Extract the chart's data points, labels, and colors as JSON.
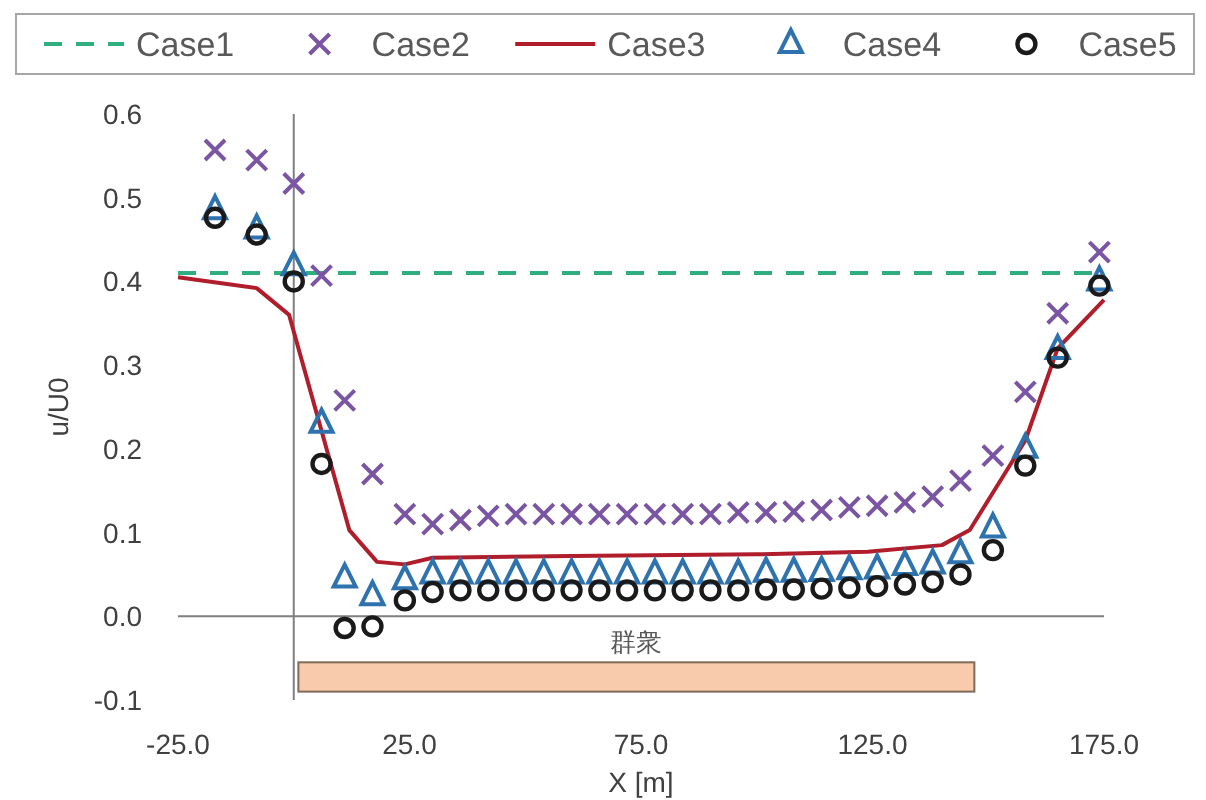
{
  "chart_data": {
    "type": "scatter",
    "xlabel": "X [m]",
    "ylabel": "u/U0",
    "xlim": [
      -25,
      175
    ],
    "ylim": [
      -0.1,
      0.6
    ],
    "xticks": [
      {
        "value": -25,
        "label": "-25.0"
      },
      {
        "value": 25,
        "label": "25.0"
      },
      {
        "value": 75,
        "label": "75.0"
      },
      {
        "value": 125,
        "label": "125.0"
      },
      {
        "value": 175,
        "label": "175.0"
      }
    ],
    "yticks": [
      {
        "value": -0.1,
        "label": "-0.1"
      },
      {
        "value": 0,
        "label": "0.0"
      },
      {
        "value": 0.1,
        "label": "0.1"
      },
      {
        "value": 0.2,
        "label": "0.2"
      },
      {
        "value": 0.3,
        "label": "0.3"
      },
      {
        "value": 0.4,
        "label": "0.4"
      },
      {
        "value": 0.5,
        "label": "0.5"
      },
      {
        "value": 0.6,
        "label": "0.6"
      }
    ],
    "legend": "top",
    "bands": [
      {
        "axis": "x",
        "from": 1,
        "to": 147,
        "label": "群衆",
        "color": "#f8cbad"
      }
    ],
    "series": [
      {
        "name": "Case1",
        "type": "line",
        "line_style": "dashed",
        "marker": "none",
        "color": "#2eaf7d",
        "x": [
          -25,
          175
        ],
        "values": [
          0.41,
          0.41
        ]
      },
      {
        "name": "Case2",
        "marker": "cross",
        "color": "#7a55a3",
        "x": [
          -17,
          -8,
          0,
          6,
          11,
          17,
          24,
          30,
          36,
          42,
          48,
          54,
          60,
          66,
          72,
          78,
          84,
          90,
          96,
          102,
          108,
          114,
          120,
          126,
          132,
          138,
          144,
          151,
          158,
          165,
          174
        ],
        "values": [
          0.557,
          0.545,
          0.517,
          0.407,
          0.258,
          0.17,
          0.122,
          0.11,
          0.115,
          0.12,
          0.122,
          0.122,
          0.122,
          0.122,
          0.122,
          0.122,
          0.122,
          0.122,
          0.124,
          0.124,
          0.125,
          0.127,
          0.13,
          0.132,
          0.136,
          0.143,
          0.162,
          0.192,
          0.268,
          0.362,
          0.435
        ]
      },
      {
        "name": "Case3",
        "type": "line",
        "line_style": "solid",
        "marker": "none",
        "color": "#b01e2b",
        "x": [
          -25,
          -8,
          -1,
          12,
          18,
          24,
          30,
          60,
          100,
          124,
          140,
          146,
          158,
          165,
          175
        ],
        "values": [
          0.405,
          0.392,
          0.36,
          0.103,
          0.065,
          0.062,
          0.07,
          0.072,
          0.074,
          0.077,
          0.085,
          0.103,
          0.21,
          0.32,
          0.378
        ]
      },
      {
        "name": "Case4",
        "marker": "triangle",
        "color": "#2f73ae",
        "x": [
          -17,
          -8,
          0,
          6,
          11,
          17,
          24,
          30,
          36,
          42,
          48,
          54,
          60,
          66,
          72,
          78,
          84,
          90,
          96,
          102,
          108,
          114,
          120,
          126,
          132,
          138,
          144,
          151,
          158,
          165,
          174
        ],
        "values": [
          0.485,
          0.462,
          0.418,
          0.23,
          0.045,
          0.024,
          0.043,
          0.05,
          0.05,
          0.05,
          0.05,
          0.05,
          0.05,
          0.05,
          0.05,
          0.05,
          0.05,
          0.05,
          0.05,
          0.052,
          0.052,
          0.053,
          0.055,
          0.056,
          0.06,
          0.062,
          0.074,
          0.105,
          0.2,
          0.318,
          0.4
        ]
      },
      {
        "name": "Case5",
        "marker": "circle",
        "color": "#1a1a1a",
        "x": [
          -17,
          -8,
          0,
          6,
          11,
          17,
          24,
          30,
          36,
          42,
          48,
          54,
          60,
          66,
          72,
          78,
          84,
          90,
          96,
          102,
          108,
          114,
          120,
          126,
          132,
          138,
          144,
          151,
          158,
          165,
          174
        ],
        "values": [
          0.476,
          0.456,
          0.4,
          0.182,
          -0.014,
          -0.012,
          0.019,
          0.029,
          0.031,
          0.031,
          0.031,
          0.031,
          0.031,
          0.031,
          0.031,
          0.031,
          0.031,
          0.031,
          0.031,
          0.032,
          0.032,
          0.033,
          0.034,
          0.036,
          0.038,
          0.041,
          0.05,
          0.079,
          0.18,
          0.309,
          0.395
        ]
      }
    ]
  }
}
